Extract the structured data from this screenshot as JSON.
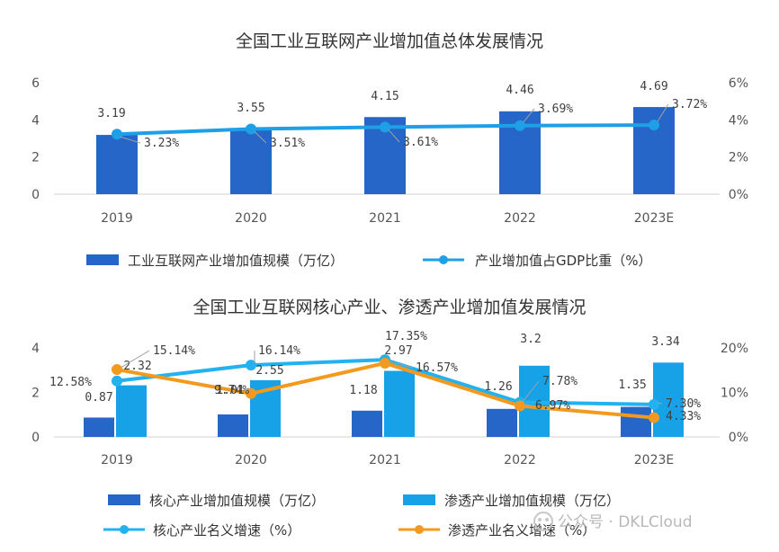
{
  "chart_data": [
    {
      "type": "bar",
      "title": "全国工业互联网产业增加值总体发展情况",
      "categories": [
        "2019",
        "2020",
        "2021",
        "2022",
        "2023E"
      ],
      "y_left_ticks": [
        "0",
        "2",
        "4",
        "6"
      ],
      "y_right_ticks": [
        "0%",
        "2%",
        "4%",
        "6%"
      ],
      "ylim_left": [
        0,
        6
      ],
      "ylim_right": [
        0,
        6
      ],
      "series": [
        {
          "name": "工业互联网产业增加值规模（万亿）",
          "kind": "bar",
          "axis": "left",
          "color": "#2566C8",
          "values": [
            3.19,
            3.55,
            4.15,
            4.46,
            4.69
          ],
          "labels": [
            "3.19",
            "3.55",
            "4.15",
            "4.46",
            "4.69"
          ]
        },
        {
          "name": "产业增加值占GDP比重（%）",
          "kind": "line",
          "axis": "right",
          "color": "#1E9FE6",
          "values": [
            3.23,
            3.51,
            3.61,
            3.69,
            3.72
          ],
          "labels": [
            "3.23%",
            "3.51%",
            "3.61%",
            "3.69%",
            "3.72%"
          ]
        }
      ]
    },
    {
      "type": "bar",
      "title": "全国工业互联网核心产业、渗透产业增加值发展情况",
      "categories": [
        "2019",
        "2020",
        "2021",
        "2022",
        "2023E"
      ],
      "y_left_ticks": [
        "0",
        "2",
        "4"
      ],
      "y_right_ticks": [
        "0%",
        "10%",
        "20%"
      ],
      "ylim_left": [
        0,
        4
      ],
      "ylim_right": [
        0,
        20
      ],
      "series": [
        {
          "name": "核心产业增加值规模（万亿）",
          "kind": "bar",
          "axis": "left",
          "color": "#2566C8",
          "values": [
            0.87,
            1.01,
            1.18,
            1.26,
            1.35
          ],
          "labels": [
            "0.87",
            "1.01",
            "1.18",
            "1.26",
            "1.35"
          ]
        },
        {
          "name": "渗透产业增加值规模（万亿）",
          "kind": "bar",
          "axis": "left",
          "color": "#17A2E8",
          "values": [
            2.32,
            2.55,
            2.97,
            3.2,
            3.34
          ],
          "labels": [
            "2.32",
            "2.55",
            "2.97",
            "3.2",
            "3.34"
          ]
        },
        {
          "name": "核心产业名义增速（%）",
          "kind": "line",
          "axis": "right",
          "color": "#22B2F0",
          "values": [
            12.58,
            16.14,
            17.35,
            7.78,
            7.3
          ],
          "labels": [
            "12.58%",
            "16.14%",
            "17.35%",
            "7.78%",
            "7.30%"
          ]
        },
        {
          "name": "渗透产业名义增速（%）",
          "kind": "line",
          "axis": "right",
          "color": "#F39A1E",
          "values": [
            15.14,
            9.74,
            16.57,
            6.97,
            4.33
          ],
          "labels": [
            "15.14%",
            "9.74%",
            "16.57%",
            "6.97%",
            "4.33%"
          ]
        }
      ]
    }
  ],
  "watermark": {
    "text": "公众号 · DKLCloud"
  }
}
